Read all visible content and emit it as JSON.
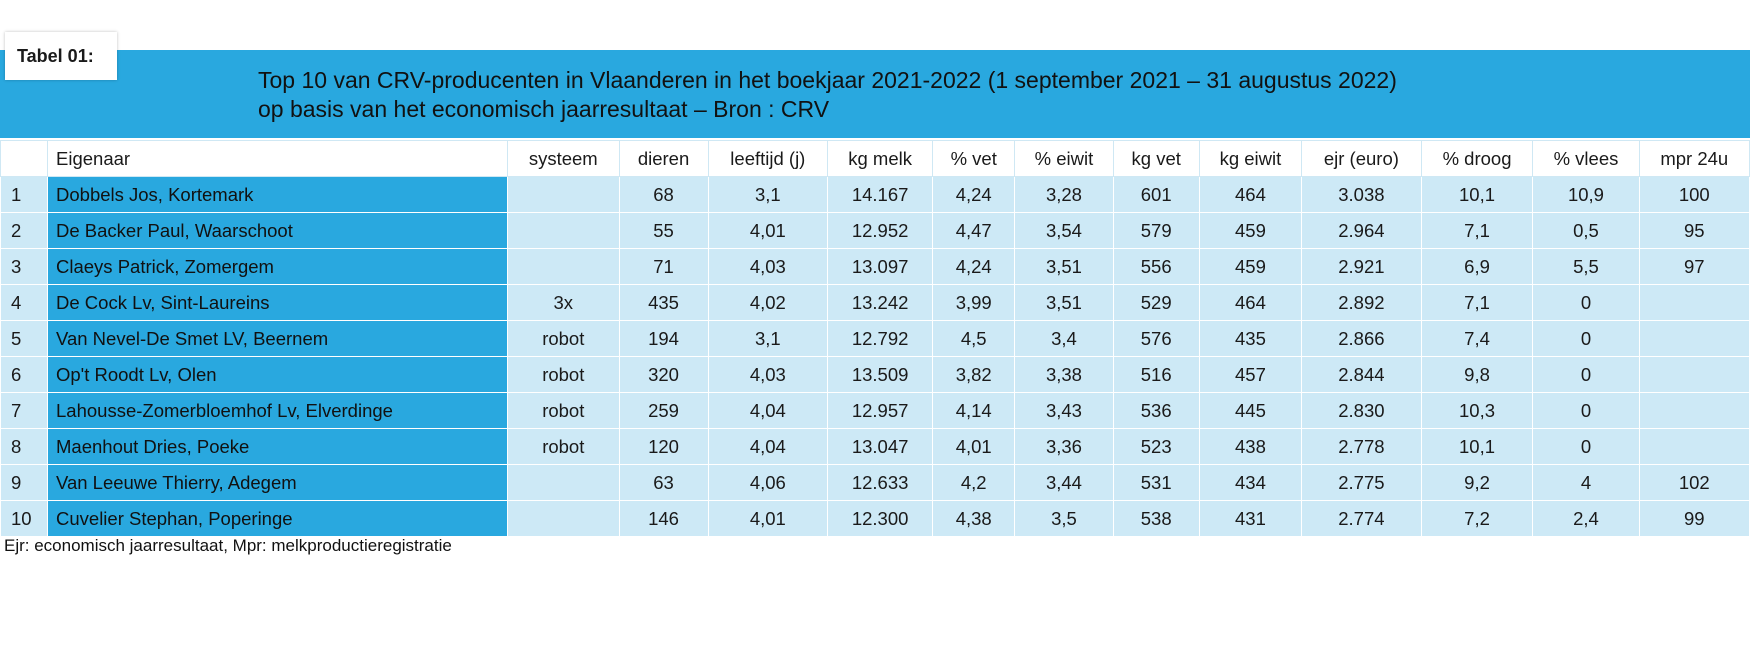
{
  "table_tag": "Tabel 01:",
  "title_line1": "Top 10 van CRV-producenten in Vlaanderen in het boekjaar 2021-2022 (1 september 2021 – 31 augustus 2022)",
  "title_line2": "op basis van het  economisch jaarresultaat – Bron : CRV",
  "columns": [
    "",
    "Eigenaar",
    "systeem",
    "dieren",
    "leeftijd (j)",
    "kg melk",
    "% vet",
    "% eiwit",
    "kg vet",
    "kg eiwit",
    "ejr (euro)",
    "% droog",
    "% vlees",
    "mpr 24u"
  ],
  "rows": [
    [
      "1",
      "Dobbels Jos, Kortemark",
      "",
      "68",
      "3,1",
      "14.167",
      "4,24",
      "3,28",
      "601",
      "464",
      "3.038",
      "10,1",
      "10,9",
      "100"
    ],
    [
      "2",
      "De Backer Paul, Waarschoot",
      "",
      "55",
      "4,01",
      "12.952",
      "4,47",
      "3,54",
      "579",
      "459",
      "2.964",
      "7,1",
      "0,5",
      "95"
    ],
    [
      "3",
      "Claeys Patrick, Zomergem",
      "",
      "71",
      "4,03",
      "13.097",
      "4,24",
      "3,51",
      "556",
      "459",
      "2.921",
      "6,9",
      "5,5",
      "97"
    ],
    [
      "4",
      "De Cock Lv, Sint-Laureins",
      "3x",
      "435",
      "4,02",
      "13.242",
      "3,99",
      "3,51",
      "529",
      "464",
      "2.892",
      "7,1",
      "0",
      ""
    ],
    [
      "5",
      "Van Nevel-De Smet LV, Beernem",
      "robot",
      "194",
      "3,1",
      "12.792",
      "4,5",
      "3,4",
      "576",
      "435",
      "2.866",
      "7,4",
      "0",
      ""
    ],
    [
      "6",
      "Op't Roodt Lv, Olen",
      "robot",
      "320",
      "4,03",
      "13.509",
      "3,82",
      "3,38",
      "516",
      "457",
      "2.844",
      "9,8",
      "0",
      ""
    ],
    [
      "7",
      "Lahousse-Zomerbloemhof Lv, Elverdinge",
      "robot",
      "259",
      "4,04",
      "12.957",
      "4,14",
      "3,43",
      "536",
      "445",
      "2.830",
      "10,3",
      "0",
      ""
    ],
    [
      "8",
      "Maenhout Dries, Poeke",
      "robot",
      "120",
      "4,04",
      "13.047",
      "4,01",
      "3,36",
      "523",
      "438",
      "2.778",
      "10,1",
      "0",
      ""
    ],
    [
      "9",
      "Van Leeuwe Thierry, Adegem",
      "",
      "63",
      "4,06",
      "12.633",
      "4,2",
      "3,44",
      "531",
      "434",
      "2.775",
      "9,2",
      "4",
      "102"
    ],
    [
      "10",
      "Cuvelier Stephan, Poperinge",
      "",
      "146",
      "4,01",
      "12.300",
      "4,38",
      "3,5",
      "538",
      "431",
      "2.774",
      "7,2",
      "2,4",
      "99"
    ]
  ],
  "footnote": "Ejr:  economisch jaarresultaat, Mpr: melkproductieregistratie",
  "colors": {
    "banner": "#29a8df",
    "cell": "#cde9f6"
  }
}
